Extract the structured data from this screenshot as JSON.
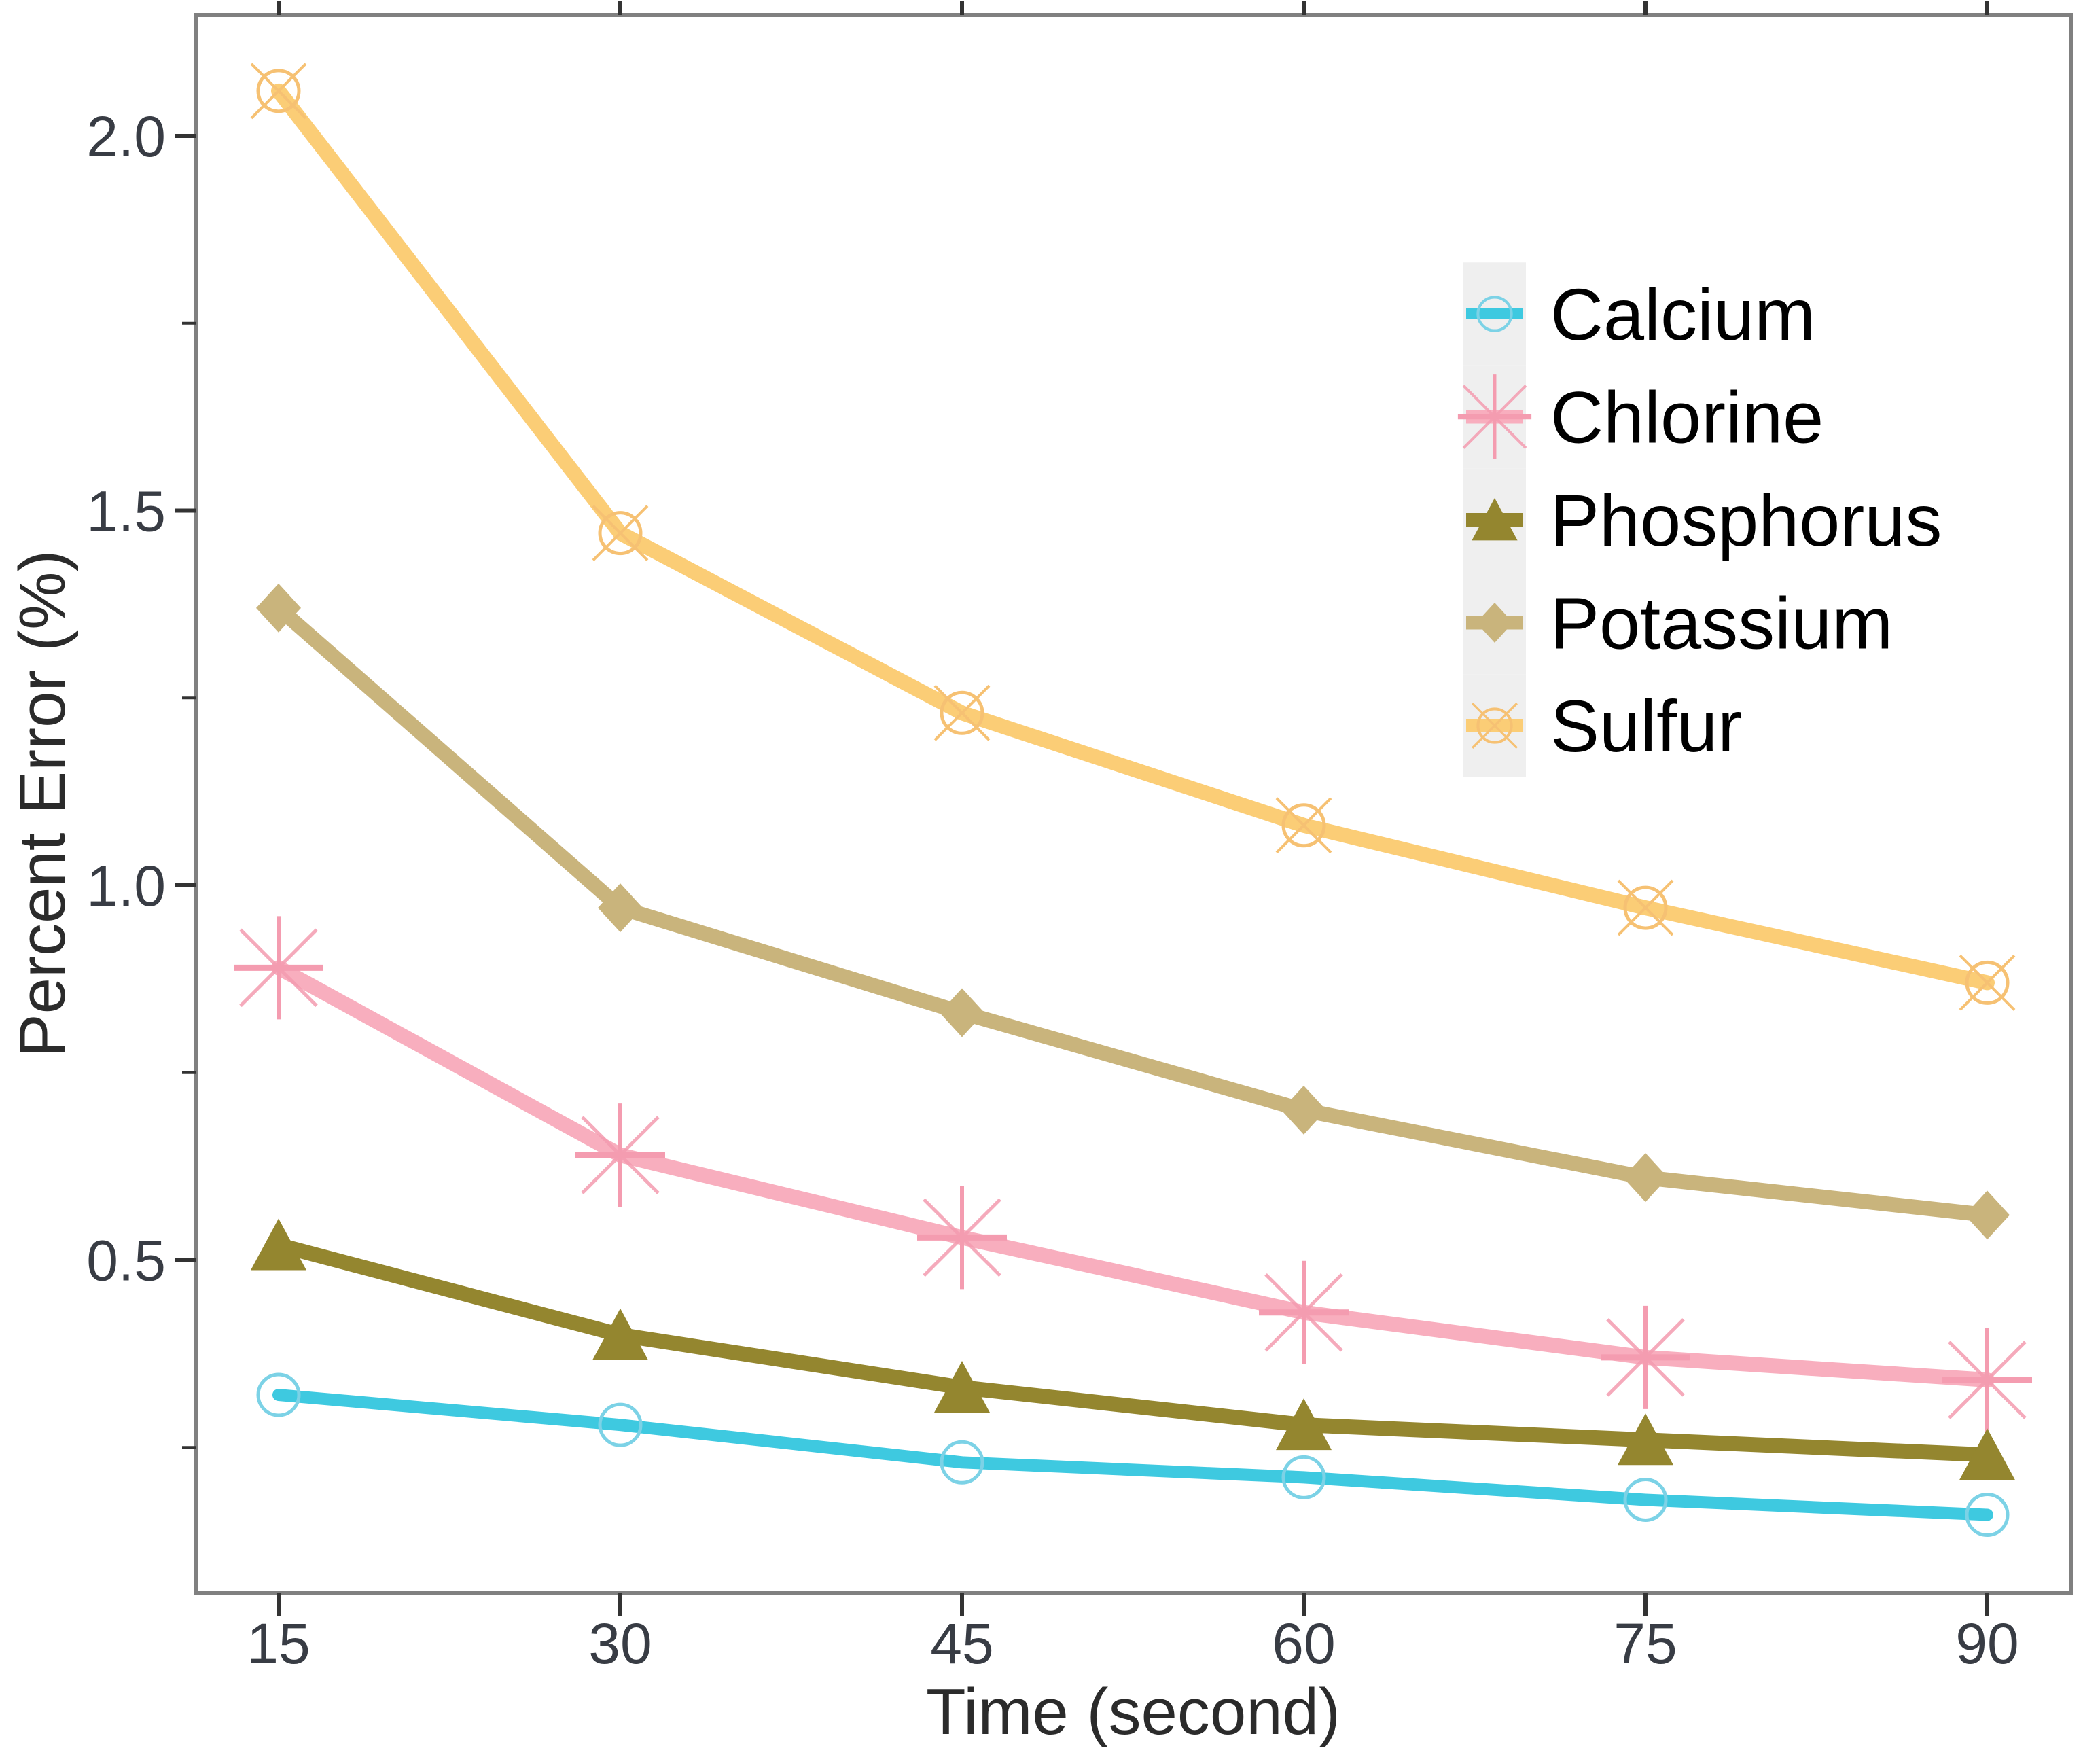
{
  "chart_data": {
    "type": "line",
    "title": "",
    "xlabel": "Time (second)",
    "ylabel": "Percent Error (%)",
    "x": [
      15,
      30,
      45,
      60,
      75,
      90
    ],
    "x_tick_labels": [
      "15",
      "30",
      "45",
      "60",
      "75",
      "90"
    ],
    "y_ticks": [
      0.5,
      1.0,
      1.5,
      2.0
    ],
    "y_tick_labels": [
      "0.5",
      "1.0",
      "1.5",
      "2.0"
    ],
    "y_minor_ticks": [
      0.25,
      0.75,
      1.25,
      1.75
    ],
    "xlim": [
      11.4,
      93.7
    ],
    "ylim": [
      0.05,
      2.19
    ],
    "grid": false,
    "legend_position": "inside-top-right",
    "series": [
      {
        "name": "Calcium",
        "marker": "circle-open",
        "color": "#3EC9E0",
        "marker_color": "#7CD2E6",
        "values": [
          0.32,
          0.28,
          0.23,
          0.21,
          0.18,
          0.16
        ]
      },
      {
        "name": "Chlorine",
        "marker": "asterisk",
        "color": "#F8AEBE",
        "marker_color": "#F49CB0",
        "values": [
          0.89,
          0.64,
          0.53,
          0.43,
          0.37,
          0.34
        ]
      },
      {
        "name": "Phosphorus",
        "marker": "triangle",
        "color": "#94862F",
        "marker_color": "#94862F",
        "values": [
          0.52,
          0.4,
          0.33,
          0.28,
          0.26,
          0.24
        ]
      },
      {
        "name": "Potassium",
        "marker": "diamond",
        "color": "#C9B47C",
        "marker_color": "#C9B47C",
        "values": [
          1.37,
          0.97,
          0.83,
          0.7,
          0.61,
          0.56
        ]
      },
      {
        "name": "Sulfur",
        "marker": "circle-x",
        "color": "#FBCD76",
        "marker_color": "#F6C173",
        "values": [
          2.06,
          1.47,
          1.23,
          1.08,
          0.97,
          0.87
        ]
      }
    ]
  },
  "colors": {
    "panel_border": "#808080",
    "tick": "#333333",
    "tick_label": "#383c44",
    "axis_title": "#2b2b2b",
    "legend_text": "#000000",
    "legend_key_bg": "#efefef",
    "background": "#ffffff"
  }
}
